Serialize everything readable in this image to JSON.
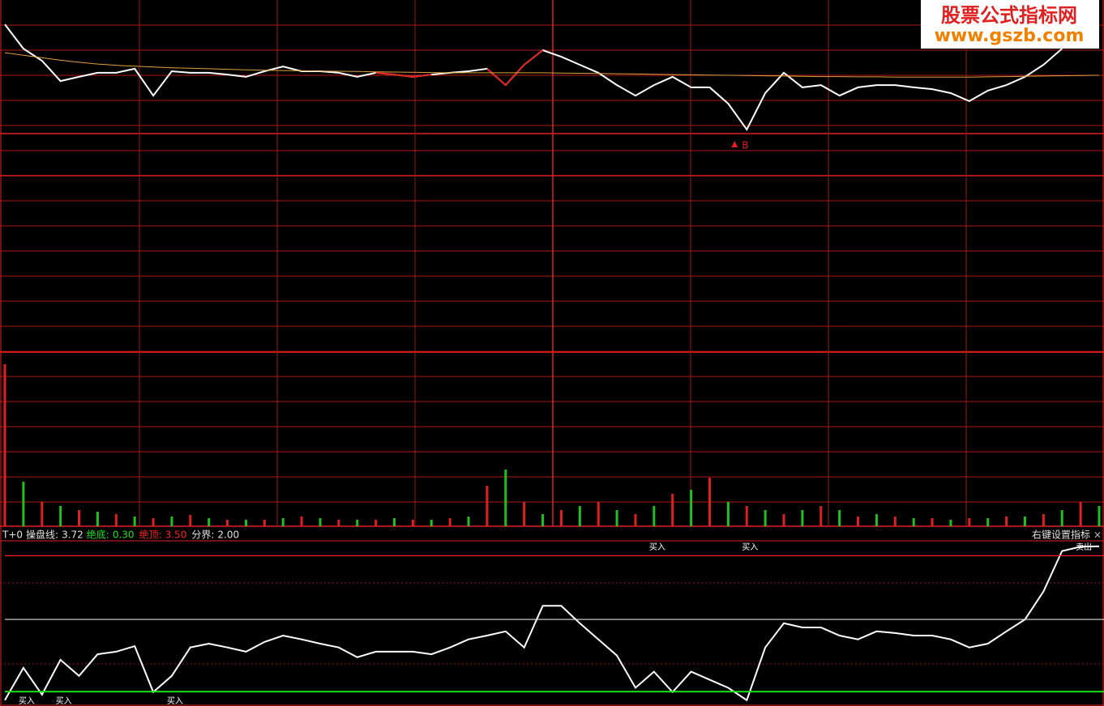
{
  "watermark": {
    "line1": "股票公式指标网",
    "line2": "www.gszb.com"
  },
  "chart_data": [
    {
      "type": "line",
      "ylim": [
        -7,
        7
      ],
      "series": [
        {
          "color": "#ffffff",
          "values": [
            6.03,
            5.06,
            4.58,
            3.77,
            3.94,
            4.1,
            4.1,
            4.26,
            3.19,
            4.16,
            4.1,
            4.1,
            4.03,
            3.94,
            4.16,
            4.35,
            4.16,
            4.16,
            4.1,
            3.94,
            4.1,
            4.03,
            3.94,
            4.03,
            4.1,
            4.16,
            4.26,
            3.61,
            4.42,
            5.0,
            4.74,
            4.42,
            4.1,
            3.61,
            3.19,
            3.61,
            3.94,
            3.52,
            3.52,
            2.87,
            1.84,
            3.29,
            4.1,
            3.52,
            3.61,
            3.19,
            3.52,
            3.61,
            3.61,
            3.52,
            3.45,
            3.29,
            2.97,
            3.39,
            3.61,
            3.94,
            4.42,
            5.06,
            null,
            null
          ]
        },
        {
          "color": "#e02020",
          "values": [
            null,
            null,
            null,
            null,
            null,
            null,
            null,
            null,
            null,
            null,
            null,
            null,
            null,
            null,
            null,
            null,
            null,
            null,
            null,
            null,
            4.1,
            4.03,
            3.94,
            4.03,
            null,
            null,
            4.26,
            3.61,
            4.42,
            5.0,
            null,
            null,
            null,
            null,
            null,
            null,
            null,
            null,
            null,
            null,
            null,
            null,
            null,
            null,
            null,
            null,
            null,
            null,
            null,
            null,
            null,
            null,
            null,
            null,
            null,
            null,
            null,
            null,
            null,
            null
          ]
        },
        {
          "color": "#e0a040",
          "values": [
            4.9,
            4.8,
            4.7,
            4.6,
            4.52,
            4.45,
            4.4,
            4.36,
            4.33,
            4.3,
            4.28,
            4.26,
            4.24,
            4.22,
            4.2,
            4.19,
            4.18,
            4.17,
            4.16,
            4.15,
            4.14,
            4.13,
            4.12,
            4.11,
            4.1,
            4.1,
            4.1,
            4.1,
            4.1,
            4.1,
            4.09,
            4.08,
            4.07,
            4.06,
            4.05,
            4.04,
            4.03,
            4.02,
            4.01,
            4.0,
            3.99,
            3.98,
            3.97,
            3.96,
            3.95,
            3.95,
            3.94,
            3.94,
            3.93,
            3.93,
            3.93,
            3.93,
            3.93,
            3.94,
            3.95,
            3.96,
            3.97,
            3.98,
            3.99,
            4.0
          ]
        }
      ],
      "markers": [
        {
          "label": "B",
          "at": 40,
          "color": "#e02020"
        }
      ]
    },
    {
      "type": "bar",
      "ylim": [
        0,
        215
      ],
      "values": [
        200,
        55,
        30,
        25,
        20,
        18,
        15,
        12,
        10,
        12,
        14,
        10,
        8,
        8,
        8,
        10,
        12,
        10,
        8,
        8,
        8,
        10,
        8,
        8,
        10,
        12,
        50,
        70,
        30,
        15,
        20,
        25,
        30,
        20,
        15,
        25,
        40,
        45,
        60,
        30,
        25,
        20,
        15,
        20,
        25,
        20,
        12,
        15,
        12,
        10,
        10,
        8,
        10,
        10,
        12,
        12,
        15,
        20,
        30,
        25
      ],
      "colors": [
        "#e02020",
        "#20c020",
        "#e02020",
        "#20c020",
        "#e02020",
        "#20c020",
        "#e02020",
        "#20c020",
        "#e02020",
        "#20c020",
        "#e02020",
        "#20c020",
        "#e02020",
        "#20c020",
        "#e02020",
        "#20c020",
        "#e02020",
        "#20c020",
        "#e02020",
        "#20c020",
        "#e02020",
        "#20c020",
        "#e02020",
        "#20c020",
        "#e02020",
        "#20c020",
        "#e02020",
        "#20c020",
        "#e02020",
        "#20c020",
        "#e02020",
        "#20c020",
        "#e02020",
        "#20c020",
        "#e02020",
        "#20c020",
        "#e02020",
        "#20c020",
        "#e02020",
        "#20c020",
        "#e02020",
        "#20c020",
        "#e02020",
        "#20c020",
        "#e02020",
        "#20c020",
        "#e02020",
        "#20c020",
        "#e02020",
        "#20c020",
        "#e02020",
        "#20c020",
        "#e02020",
        "#20c020",
        "#e02020",
        "#20c020",
        "#e02020",
        "#20c020",
        "#e02020",
        "#20c020"
      ]
    },
    {
      "type": "line",
      "title": "T+0",
      "ylim": [
        0,
        3.85
      ],
      "series": [
        {
          "name": "操盘线:",
          "color": "#ffffff",
          "values": [
            0.1,
            0.86,
            0.23,
            1.05,
            0.67,
            1.18,
            1.24,
            1.37,
            0.29,
            0.67,
            1.34,
            1.43,
            1.34,
            1.24,
            1.47,
            1.62,
            1.53,
            1.43,
            1.34,
            1.11,
            1.24,
            1.24,
            1.24,
            1.18,
            1.34,
            1.53,
            1.62,
            1.72,
            1.34,
            2.32,
            2.32,
            1.91,
            1.53,
            1.15,
            0.39,
            0.77,
            0.29,
            0.77,
            0.58,
            0.39,
            0.1,
            1.34,
            1.91,
            1.81,
            1.81,
            1.62,
            1.53,
            1.72,
            1.68,
            1.62,
            1.62,
            1.53,
            1.34,
            1.43,
            1.72,
            2.0,
            2.66,
            3.61,
            3.71,
            3.72
          ]
        }
      ],
      "levels": [
        {
          "name": "绝底:",
          "value": {
            "value": 0.3,
            "label": "0.30"
          },
          "color": "#20e020"
        },
        {
          "name": "绝顶:",
          "value": {
            "value": 3.5,
            "label": "3.50"
          },
          "color": "#ff2020"
        },
        {
          "name": "分界:",
          "value": {
            "value": 2,
            "label": "2.00"
          },
          "color": "#e0e0e0"
        }
      ],
      "markers": [
        {
          "label": "买入",
          "at": 1
        },
        {
          "label": "买入",
          "at": 3
        },
        {
          "label": "买入",
          "at": 9
        },
        {
          "label": "买入",
          "at": 35
        },
        {
          "label": "买入",
          "at": 40
        },
        {
          "label": "卖出",
          "at": 58
        }
      ],
      "menu": "右键设置指标",
      "close": "×"
    }
  ]
}
